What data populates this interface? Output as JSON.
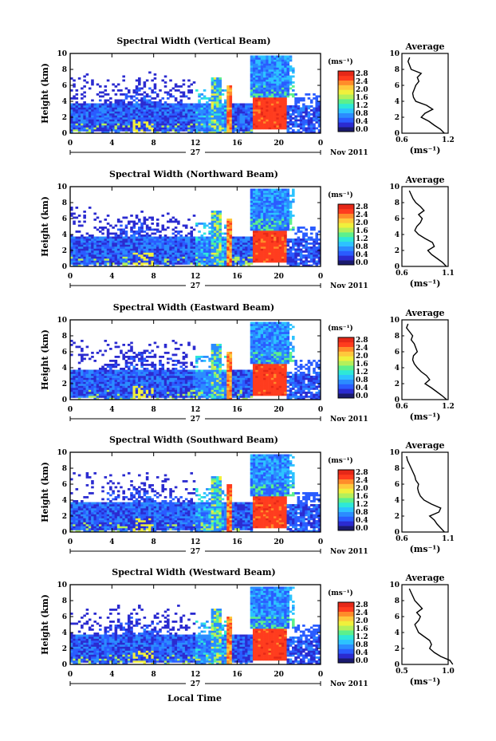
{
  "figure": {
    "xlabel": "Local Time",
    "height_label": "Height (km)",
    "unit_label": "(ms⁻¹)",
    "date_day": "27",
    "date_month": "Nov 2011",
    "average_title": "Average"
  },
  "colorbar": {
    "ticks": [
      "2.8",
      "2.4",
      "2.0",
      "1.6",
      "1.2",
      "0.8",
      "0.4",
      "0.0"
    ],
    "colors": [
      "#1a1a6e",
      "#2b2bd0",
      "#2a5cff",
      "#2b8cff",
      "#2cc3ff",
      "#2ee8d8",
      "#5cf08c",
      "#b4f05a",
      "#f0f03c",
      "#ffc83c",
      "#ff8c2a",
      "#ff3c1e",
      "#e62818"
    ]
  },
  "chart_data": [
    {
      "type": "heatmap",
      "title": "Spectral Width (Vertical Beam)",
      "x_ticks": [
        "0",
        "4",
        "8",
        "12",
        "16",
        "20",
        "0"
      ],
      "y_ticks": [
        "10",
        "8",
        "6",
        "4",
        "2",
        "0"
      ],
      "xlim": [
        0,
        24
      ],
      "ylim": [
        0,
        10
      ],
      "average": {
        "title": "Average",
        "xlim": [
          0.6,
          1.2
        ],
        "x_ticks": [
          "0.6",
          "1.2"
        ],
        "height": [
          0,
          0.5,
          1,
          1.5,
          2,
          2.5,
          3,
          3.5,
          4,
          4.5,
          5,
          5.5,
          6,
          6.5,
          7,
          7.5,
          8,
          8.5,
          9,
          9.5
        ],
        "value": [
          1.15,
          1.1,
          1.02,
          0.95,
          0.85,
          0.9,
          1.0,
          0.92,
          0.78,
          0.75,
          0.74,
          0.76,
          0.78,
          0.82,
          0.8,
          0.85,
          0.72,
          0.7,
          0.68,
          0.7
        ]
      }
    },
    {
      "type": "heatmap",
      "title": "Spectral Width (Northward Beam)",
      "x_ticks": [
        "0",
        "4",
        "8",
        "12",
        "16",
        "20",
        "0"
      ],
      "y_ticks": [
        "10",
        "8",
        "6",
        "4",
        "2",
        "0"
      ],
      "xlim": [
        0,
        24
      ],
      "ylim": [
        0,
        10
      ],
      "average": {
        "title": "Average",
        "xlim": [
          0.6,
          1.1
        ],
        "x_ticks": [
          "0.6",
          "1.1"
        ],
        "height": [
          0,
          0.5,
          1,
          1.5,
          2,
          2.5,
          3,
          3.5,
          4,
          4.5,
          5,
          5.5,
          6,
          6.5,
          7,
          7.5,
          8,
          8.5,
          9,
          9.5
        ],
        "value": [
          1.08,
          1.04,
          0.98,
          0.92,
          0.88,
          0.95,
          0.93,
          0.85,
          0.78,
          0.74,
          0.76,
          0.8,
          0.82,
          0.78,
          0.84,
          0.8,
          0.75,
          0.72,
          0.7,
          0.68
        ]
      }
    },
    {
      "type": "heatmap",
      "title": "Spectral Width (Eastward Beam)",
      "x_ticks": [
        "0",
        "4",
        "8",
        "12",
        "16",
        "20",
        "0"
      ],
      "y_ticks": [
        "10",
        "8",
        "6",
        "4",
        "2",
        "0"
      ],
      "xlim": [
        0,
        24
      ],
      "ylim": [
        0,
        10
      ],
      "average": {
        "title": "Average",
        "xlim": [
          0.6,
          1.2
        ],
        "x_ticks": [
          "0.6",
          "1.2"
        ],
        "height": [
          0,
          0.5,
          1,
          1.5,
          2,
          2.5,
          3,
          3.5,
          4,
          4.5,
          5,
          5.5,
          6,
          6.5,
          7,
          7.5,
          8,
          8.5,
          9,
          9.5
        ],
        "value": [
          1.18,
          1.12,
          1.05,
          0.98,
          0.9,
          0.96,
          0.92,
          0.85,
          0.8,
          0.76,
          0.74,
          0.75,
          0.8,
          0.78,
          0.76,
          0.72,
          0.74,
          0.7,
          0.66,
          0.68
        ]
      }
    },
    {
      "type": "heatmap",
      "title": "Spectral Width (Southward Beam)",
      "x_ticks": [
        "0",
        "4",
        "8",
        "12",
        "16",
        "20",
        "0"
      ],
      "y_ticks": [
        "10",
        "8",
        "6",
        "4",
        "2",
        "0"
      ],
      "xlim": [
        0,
        24
      ],
      "ylim": [
        0,
        10
      ],
      "average": {
        "title": "Average",
        "xlim": [
          0.6,
          1.1
        ],
        "x_ticks": [
          "0.6",
          "1.1"
        ],
        "height": [
          0,
          0.5,
          1,
          1.5,
          2,
          2.5,
          3,
          3.5,
          4,
          4.5,
          5,
          5.5,
          6,
          6.5,
          7,
          7.5,
          8,
          8.5,
          9,
          9.5
        ],
        "value": [
          1.06,
          1.02,
          0.98,
          0.95,
          0.9,
          1.0,
          1.02,
          0.92,
          0.84,
          0.8,
          0.78,
          0.77,
          0.78,
          0.75,
          0.74,
          0.72,
          0.7,
          0.68,
          0.66,
          0.65
        ]
      }
    },
    {
      "type": "heatmap",
      "title": "Spectral Width (Westward Beam)",
      "x_ticks": [
        "0",
        "4",
        "8",
        "12",
        "16",
        "20",
        "0"
      ],
      "y_ticks": [
        "10",
        "8",
        "6",
        "4",
        "2",
        "0"
      ],
      "xlim": [
        0,
        24
      ],
      "ylim": [
        0,
        10
      ],
      "average": {
        "title": "Average",
        "xlim": [
          0.5,
          1.0
        ],
        "x_ticks": [
          "0.5",
          "1.0"
        ],
        "height": [
          0,
          0.5,
          1,
          1.5,
          2,
          2.5,
          3,
          3.5,
          4,
          4.5,
          5,
          5.5,
          6,
          6.5,
          7,
          7.5,
          8,
          8.5,
          9,
          9.5
        ],
        "value": [
          1.05,
          1.02,
          0.92,
          0.85,
          0.8,
          0.82,
          0.8,
          0.74,
          0.68,
          0.66,
          0.64,
          0.68,
          0.7,
          0.66,
          0.72,
          0.68,
          0.64,
          0.62,
          0.6,
          0.58
        ]
      }
    }
  ]
}
